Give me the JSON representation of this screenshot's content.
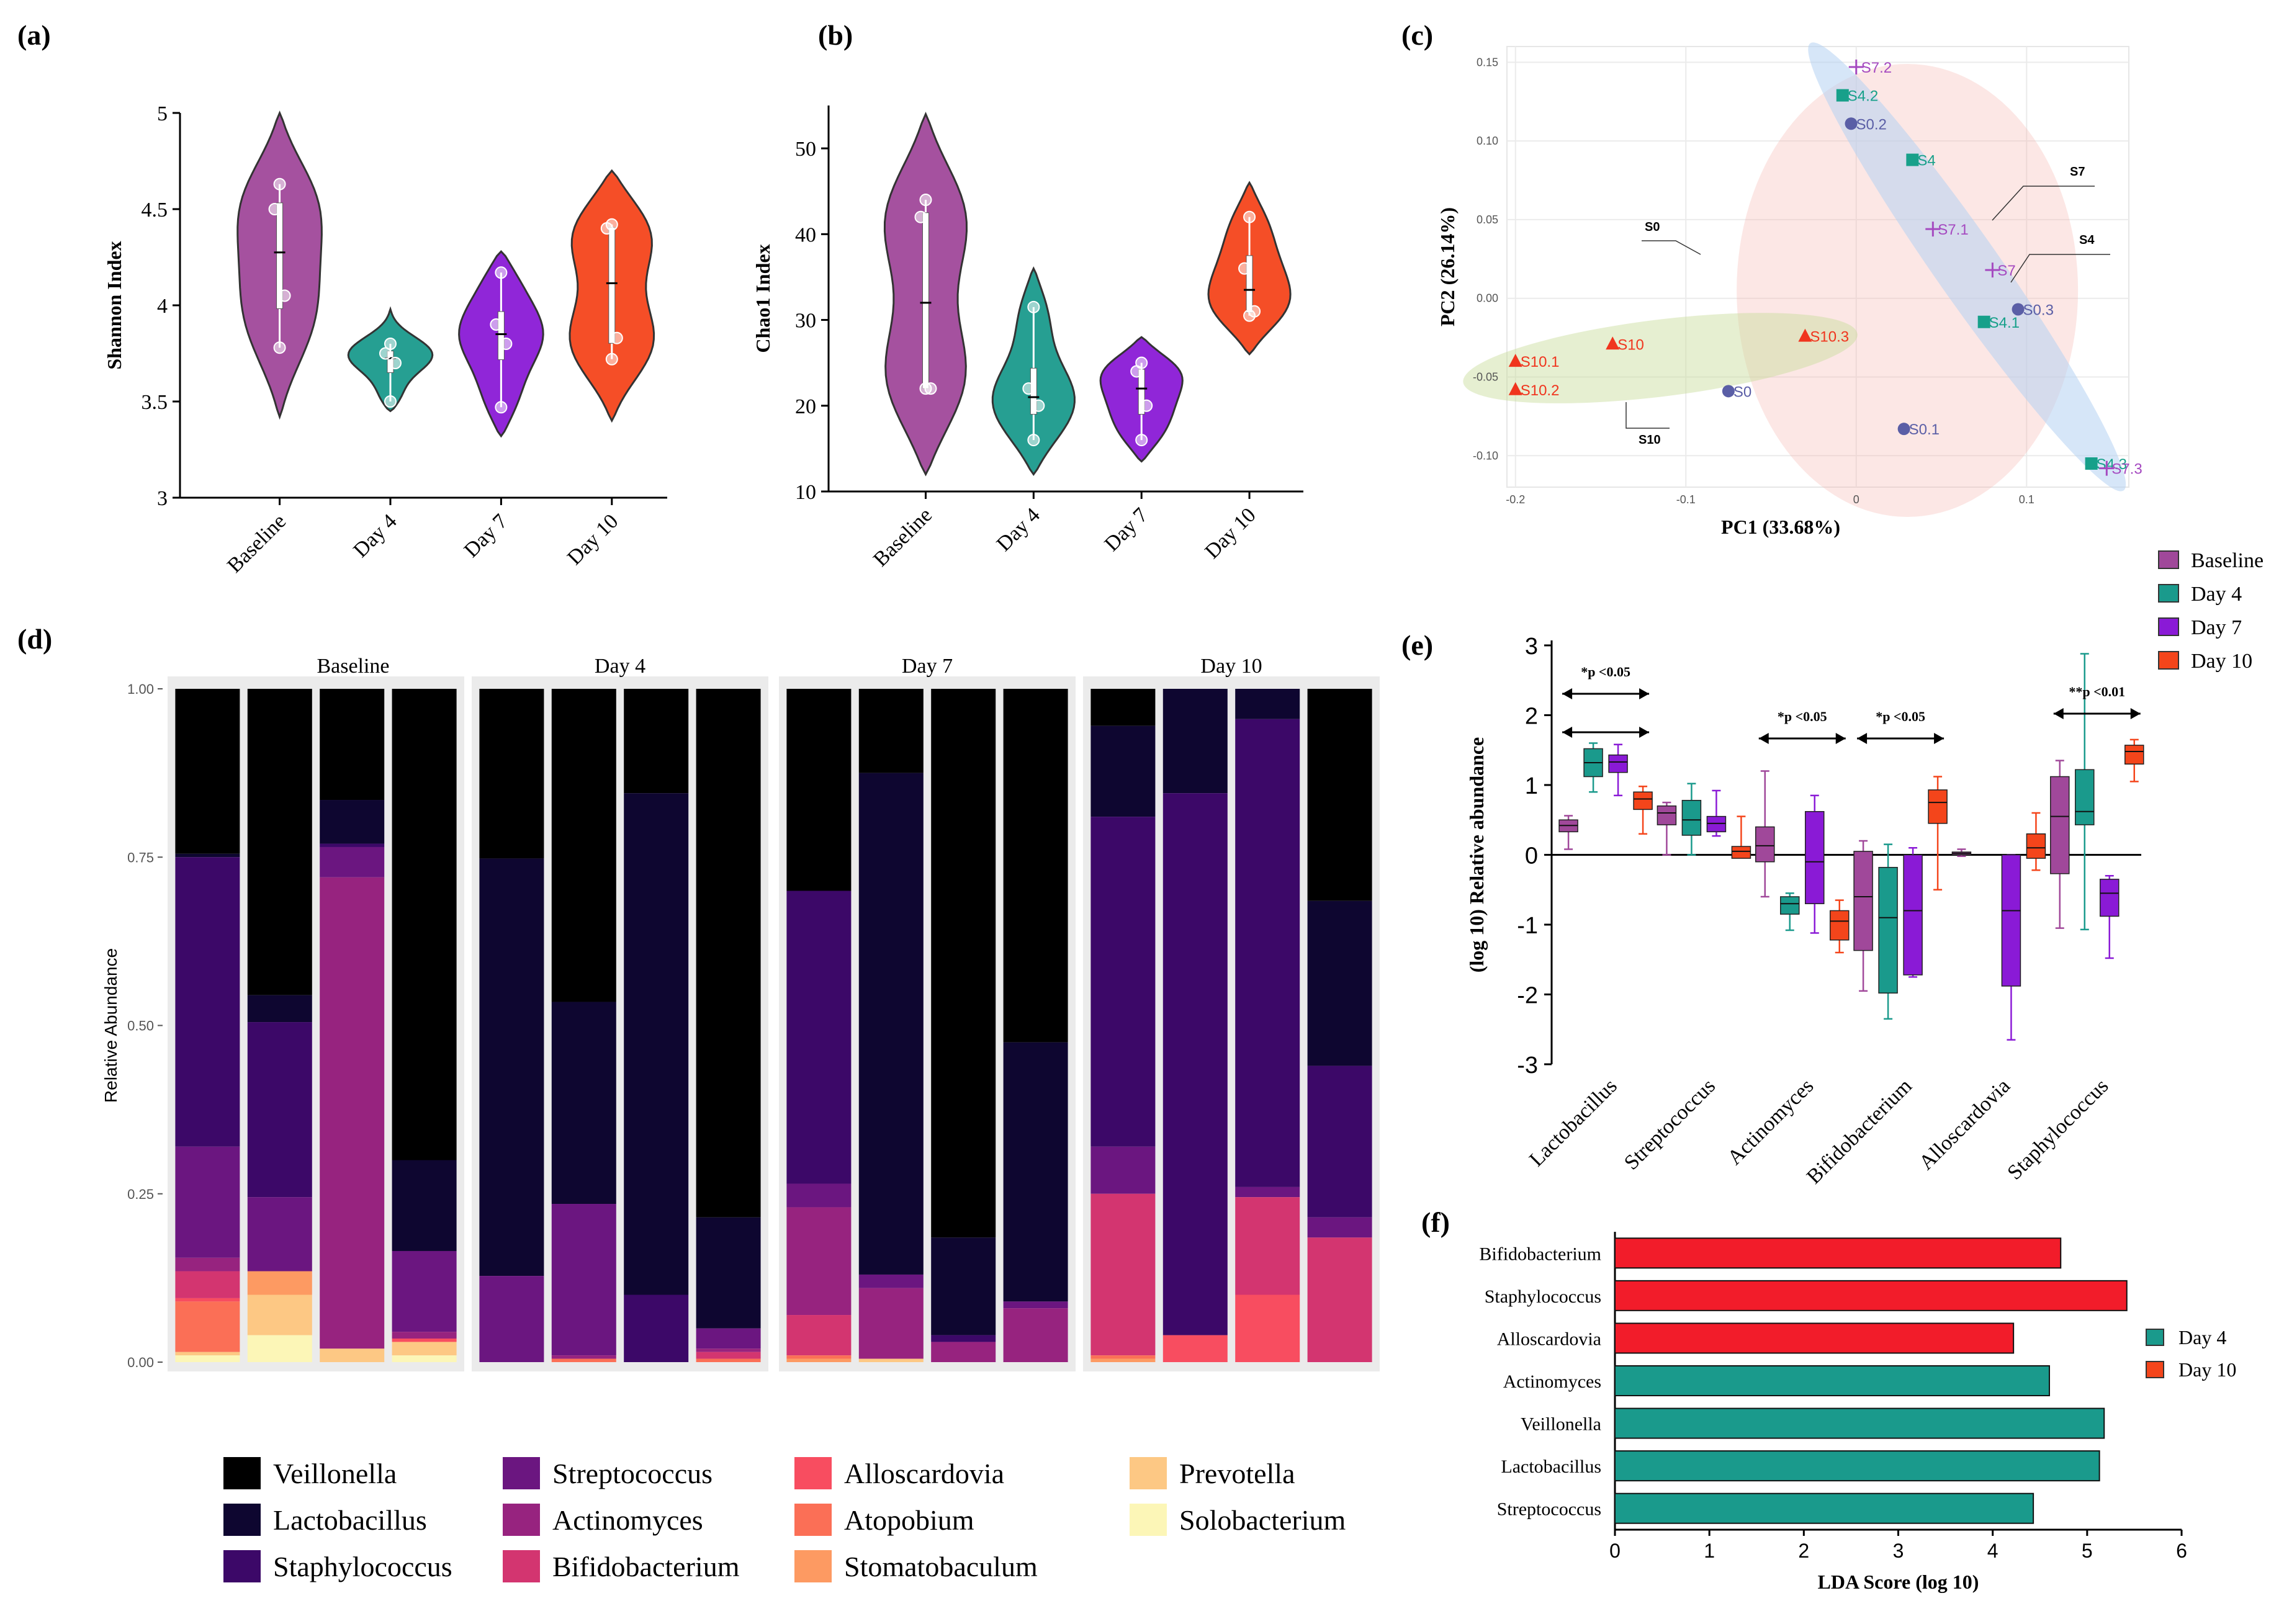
{
  "panel_labels": {
    "a": "(a)",
    "b": "(b)",
    "c": "(c)",
    "d": "(d)",
    "e": "(e)",
    "f": "(f)"
  },
  "colors": {
    "Baseline": "#a0489a",
    "Day 4": "#1a9a8c",
    "Day 7": "#8a1ad6",
    "Day 10": "#f4451b",
    "f_up": "#f21c2a"
  },
  "chart_data": [
    {
      "id": "a",
      "type": "violin",
      "title": "",
      "xlabel": "",
      "ylabel": "Shannon Index",
      "ylim": [
        3,
        5
      ],
      "yticks": [
        3,
        3.5,
        4,
        4.5,
        5
      ],
      "categories": [
        "Baseline",
        "Day 4",
        "Day 7",
        "Day 10"
      ],
      "points": [
        [
          3.78,
          4.05,
          4.5,
          4.63
        ],
        [
          3.5,
          3.7,
          3.75,
          3.8
        ],
        [
          3.47,
          3.8,
          3.9,
          4.17
        ],
        [
          3.72,
          3.83,
          4.4,
          4.42
        ]
      ],
      "violin_range": [
        [
          3.42,
          5.0
        ],
        [
          3.45,
          3.98
        ],
        [
          3.32,
          4.28
        ],
        [
          3.4,
          4.7
        ]
      ]
    },
    {
      "id": "b",
      "type": "violin",
      "title": "",
      "xlabel": "",
      "ylabel": "Chao1 Index",
      "ylim": [
        10,
        55
      ],
      "yticks": [
        10,
        20,
        30,
        40,
        50
      ],
      "categories": [
        "Baseline",
        "Day 4",
        "Day 7",
        "Day 10"
      ],
      "points": [
        [
          22,
          22,
          42,
          44
        ],
        [
          16,
          20,
          22,
          31.5
        ],
        [
          16,
          20,
          24,
          25
        ],
        [
          30.5,
          31,
          36,
          42
        ]
      ],
      "violin_range": [
        [
          12,
          54
        ],
        [
          12,
          36
        ],
        [
          13.5,
          28
        ],
        [
          26,
          46
        ]
      ]
    },
    {
      "id": "c",
      "type": "scatter",
      "title": "",
      "xlabel": "PC1 (33.68%)",
      "ylabel": "PC2 (26.14%)",
      "xlim": [
        -0.205,
        0.16
      ],
      "ylim": [
        -0.12,
        0.16
      ],
      "xticks": [
        -0.2,
        -0.1,
        0,
        0.1
      ],
      "yticks": [
        0.15,
        0.1,
        0.05,
        0.0,
        -0.05,
        -0.1
      ],
      "xtick_labels": [
        "-0.2",
        "-0.1",
        "0",
        "0.1"
      ],
      "ytick_labels": [
        "0.15",
        "0.10",
        "0.05",
        "0.00",
        "-0.05",
        "-0.10"
      ],
      "points": [
        {
          "label": "S7.2",
          "group": "S7",
          "x": 0.0,
          "y": 0.147
        },
        {
          "label": "S4.2",
          "group": "S4",
          "x": -0.008,
          "y": 0.129
        },
        {
          "label": "S0.2",
          "group": "S0",
          "x": -0.003,
          "y": 0.111
        },
        {
          "label": "S4",
          "group": "S4",
          "x": 0.033,
          "y": 0.088
        },
        {
          "label": "S7.1",
          "group": "S7",
          "x": 0.045,
          "y": 0.044
        },
        {
          "label": "S7",
          "group": "S7",
          "x": 0.08,
          "y": 0.018
        },
        {
          "label": "S0.3",
          "group": "S0",
          "x": 0.095,
          "y": -0.007
        },
        {
          "label": "S4.1",
          "group": "S4",
          "x": 0.075,
          "y": -0.015
        },
        {
          "label": "S10.3",
          "group": "S10",
          "x": -0.03,
          "y": -0.024
        },
        {
          "label": "S10",
          "group": "S10",
          "x": -0.143,
          "y": -0.029
        },
        {
          "label": "S10.1",
          "group": "S10",
          "x": -0.2,
          "y": -0.04
        },
        {
          "label": "S10.2",
          "group": "S10",
          "x": -0.2,
          "y": -0.058
        },
        {
          "label": "S0",
          "group": "S0",
          "x": -0.075,
          "y": -0.059
        },
        {
          "label": "S0.1",
          "group": "S0",
          "x": 0.028,
          "y": -0.083
        },
        {
          "label": "S4.3",
          "group": "S4",
          "x": 0.138,
          "y": -0.105
        },
        {
          "label": "S7.3",
          "group": "S7",
          "x": 0.147,
          "y": -0.108
        }
      ],
      "group_labels": [
        "S7",
        "S4",
        "S0",
        "S10"
      ]
    },
    {
      "id": "d",
      "type": "stacked_bar",
      "title": "",
      "xlabel": "",
      "ylabel": "Relative Abundance",
      "ylim": [
        0,
        1
      ],
      "yticks": [
        0,
        0.25,
        0.5,
        0.75,
        1
      ],
      "ytick_labels": [
        "0.00",
        "0.25",
        "0.50",
        "0.75",
        "1.00"
      ],
      "facets": [
        "Baseline",
        "Day 4",
        "Day 7",
        "Day 10"
      ],
      "taxa": [
        "Veillonella",
        "Lactobacillus",
        "Staphylococcus",
        "Streptococcus",
        "Actinomyces",
        "Bifidobacterium",
        "Alloscardovia",
        "Atopobium",
        "Stomatobaculum",
        "Prevotella",
        "Solobacterium"
      ],
      "taxa_colors": [
        "#000000",
        "#0e0630",
        "#3c0868",
        "#6b1680",
        "#97237f",
        "#d33570",
        "#f84d60",
        "#fb6f56",
        "#fd9a62",
        "#fdc884",
        "#fcf6b7"
      ],
      "samples": [
        [
          [
            0.245,
            0.005,
            0.43,
            0.165,
            0.02,
            0.04,
            0.005,
            0.075,
            0.0,
            0.005,
            0.01
          ],
          [
            0.455,
            0.04,
            0.26,
            0.11,
            0.0,
            0.0,
            0.0,
            0.0,
            0.035,
            0.06,
            0.04
          ],
          [
            0.165,
            0.065,
            0.005,
            0.045,
            0.7,
            0.0,
            0.0,
            0.0,
            0.0,
            0.02,
            0.0
          ],
          [
            0.7,
            0.135,
            0.0,
            0.12,
            0.01,
            0.0,
            0.005,
            0.0,
            0.0,
            0.02,
            0.01
          ]
        ],
        [
          [
            0.252,
            0.62,
            0.0,
            0.128,
            0.0,
            0.0,
            0.0,
            0.0,
            0.0,
            0.0,
            0.0
          ],
          [
            0.465,
            0.3,
            0.0,
            0.225,
            0.005,
            0.0,
            0.0,
            0.005,
            0.0,
            0.0,
            0.0
          ],
          [
            0.155,
            0.745,
            0.1,
            0.0,
            0.0,
            0.0,
            0.0,
            0.0,
            0.0,
            0.0,
            0.0
          ],
          [
            0.785,
            0.165,
            0.0,
            0.03,
            0.005,
            0.01,
            0.0,
            0.005,
            0.0,
            0.0,
            0.0
          ]
        ],
        [
          [
            0.3,
            0.0,
            0.435,
            0.035,
            0.16,
            0.06,
            0.0,
            0.005,
            0.005,
            0.0,
            0.0
          ],
          [
            0.125,
            0.745,
            0.0,
            0.02,
            0.105,
            0.0,
            0.0,
            0.0,
            0.0,
            0.005,
            0.0
          ],
          [
            0.815,
            0.145,
            0.01,
            0.0,
            0.03,
            0.0,
            0.0,
            0.0,
            0.0,
            0.0,
            0.0
          ],
          [
            0.525,
            0.385,
            0.0,
            0.01,
            0.08,
            0.0,
            0.0,
            0.0,
            0.0,
            0.0,
            0.0
          ]
        ],
        [
          [
            0.055,
            0.135,
            0.49,
            0.07,
            0.0,
            0.24,
            0.0,
            0.005,
            0.005,
            0.0,
            0.0
          ],
          [
            0.0,
            0.155,
            0.805,
            0.0,
            0.0,
            0.0,
            0.04,
            0.0,
            0.0,
            0.0,
            0.0
          ],
          [
            0.0,
            0.045,
            0.695,
            0.015,
            0.0,
            0.145,
            0.1,
            0.0,
            0.0,
            0.0,
            0.0
          ],
          [
            0.315,
            0.245,
            0.225,
            0.03,
            0.0,
            0.185,
            0.0,
            0.0,
            0.0,
            0.0,
            0.0
          ]
        ]
      ]
    },
    {
      "id": "e",
      "type": "boxplot",
      "title": "",
      "xlabel": "",
      "ylabel": "(log 10) Relative abundance",
      "ylim": [
        -3,
        3
      ],
      "yticks": [
        -3,
        -2,
        -1,
        0,
        1,
        2,
        3
      ],
      "categories": [
        "Lactobacillus",
        "Streptococcus",
        "Actinomyces",
        "Bifidobacterium",
        "Alloscardovia",
        "Staphylococcus"
      ],
      "series": [
        {
          "name": "Baseline",
          "boxes": [
            [
              0.08,
              0.33,
              0.42,
              0.5,
              0.56
            ],
            [
              0.0,
              0.43,
              0.6,
              0.7,
              0.75
            ],
            [
              -0.6,
              -0.1,
              0.13,
              0.4,
              1.2
            ],
            [
              -1.95,
              -1.37,
              -0.6,
              0.05,
              0.2
            ],
            [
              -0.02,
              0.0,
              0.02,
              0.04,
              0.08
            ],
            [
              -1.05,
              -0.27,
              0.55,
              1.12,
              1.35
            ]
          ]
        },
        {
          "name": "Day 4",
          "boxes": [
            [
              0.9,
              1.12,
              1.32,
              1.52,
              1.6
            ],
            [
              0.0,
              0.28,
              0.5,
              0.78,
              1.02
            ],
            [
              -1.08,
              -0.85,
              -0.7,
              -0.6,
              -0.55
            ],
            [
              -2.35,
              -1.98,
              -0.9,
              -0.18,
              0.15
            ],
            null,
            [
              -1.07,
              0.43,
              0.62,
              1.22,
              2.88
            ]
          ]
        },
        {
          "name": "Day 7",
          "boxes": [
            [
              0.85,
              1.18,
              1.33,
              1.43,
              1.58
            ],
            [
              0.27,
              0.33,
              0.45,
              0.55,
              0.92
            ],
            [
              -1.12,
              -0.7,
              -0.1,
              0.62,
              0.85
            ],
            [
              -1.75,
              -1.72,
              -0.8,
              0.0,
              0.1
            ],
            [
              -2.65,
              -1.88,
              -0.8,
              0.0,
              0.0
            ],
            [
              -1.48,
              -0.88,
              -0.55,
              -0.35,
              -0.3
            ]
          ]
        },
        {
          "name": "Day 10",
          "boxes": [
            [
              0.3,
              0.65,
              0.8,
              0.9,
              0.98
            ],
            [
              -0.02,
              -0.05,
              0.05,
              0.12,
              0.55
            ],
            [
              -1.4,
              -1.22,
              -0.95,
              -0.8,
              -0.65
            ],
            [
              -0.5,
              0.45,
              0.75,
              0.93,
              1.12
            ],
            [
              -0.22,
              -0.05,
              0.1,
              0.3,
              0.6
            ],
            [
              1.05,
              1.3,
              1.48,
              1.57,
              1.65
            ]
          ]
        }
      ],
      "annotations": [
        "*p <0.05",
        "*p <0.05",
        "*p <0.05",
        "**p <0.01"
      ],
      "annotation_categories": [
        0,
        2,
        3,
        5
      ]
    },
    {
      "id": "f",
      "type": "bar",
      "orientation": "horizontal",
      "title": "",
      "xlabel": "LDA Score (log 10)",
      "ylabel": "",
      "xlim": [
        0,
        6
      ],
      "xticks": [
        0,
        1,
        2,
        3,
        4,
        5,
        6
      ],
      "categories": [
        "Bifidobacterium",
        "Staphylococcus",
        "Alloscardovia",
        "Actinomyces",
        "Veillonella",
        "Lactobacillus",
        "Streptococcus"
      ],
      "values": [
        4.72,
        5.42,
        4.22,
        4.6,
        5.18,
        5.13,
        4.43
      ],
      "groups": [
        "Day 10",
        "Day 10",
        "Day 10",
        "Day 4",
        "Day 4",
        "Day 4",
        "Day 4"
      ]
    }
  ],
  "legend_e": [
    "Baseline",
    "Day 4",
    "Day 7",
    "Day 10"
  ],
  "legend_f": [
    "Day 4",
    "Day 10"
  ]
}
